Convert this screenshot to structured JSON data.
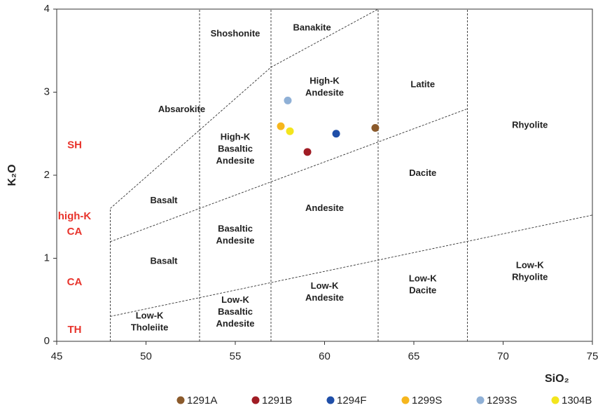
{
  "chart_data": {
    "type": "scatter",
    "x_label": "SiO₂",
    "y_label": "K₂O",
    "xlim": [
      45,
      75
    ],
    "ylim": [
      0,
      4
    ],
    "xticks": [
      45,
      50,
      55,
      60,
      65,
      70,
      75
    ],
    "yticks": [
      0,
      1,
      2,
      3,
      4
    ],
    "series": [
      {
        "name": "1291A",
        "color": "#8b5a2b",
        "x": [
          62.84
        ],
        "values": [
          2.57
        ]
      },
      {
        "name": "1291B",
        "color": "#a01c24",
        "x": [
          59.04
        ],
        "values": [
          2.28
        ]
      },
      {
        "name": "1294F",
        "color": "#1f4ea8",
        "x": [
          60.65
        ],
        "values": [
          2.5
        ]
      },
      {
        "name": "1299S",
        "color": "#f6b61d",
        "x": [
          57.55
        ],
        "values": [
          2.59
        ]
      },
      {
        "name": "1293S",
        "color": "#8fb0d6",
        "x": [
          57.94
        ],
        "values": [
          2.9
        ]
      },
      {
        "name": "1304B",
        "color": "#f3e51d",
        "x": [
          58.06
        ],
        "values": [
          2.53
        ]
      }
    ],
    "boundaries": [
      {
        "x": [
          48,
          57,
          63
        ],
        "y": [
          1.6,
          3.3,
          4
        ]
      },
      {
        "x": [
          48,
          68
        ],
        "y": [
          1.2,
          2.8
        ]
      },
      {
        "x": [
          48,
          75
        ],
        "y": [
          0.3,
          1.52
        ]
      },
      {
        "x": [
          48,
          48
        ],
        "y": [
          0,
          1.6
        ]
      },
      {
        "x": [
          53,
          53
        ],
        "y": [
          0,
          4
        ]
      },
      {
        "x": [
          57,
          57
        ],
        "y": [
          0,
          4
        ]
      },
      {
        "x": [
          63,
          63
        ],
        "y": [
          0,
          4
        ]
      },
      {
        "x": [
          68,
          68
        ],
        "y": [
          0,
          4
        ]
      }
    ],
    "regions": [
      [
        "Banakite"
      ],
      [
        "Shoshonite"
      ],
      [
        "High-K",
        "Andesite"
      ],
      [
        "Latite"
      ],
      [
        "Absarokite"
      ],
      [
        "Rhyolite"
      ],
      [
        "High-K",
        "Basaltic",
        "Andesite"
      ],
      [
        "Dacite"
      ],
      [
        "Basalt"
      ],
      [
        "Andesite"
      ],
      [
        "Basaltic",
        "Andesite"
      ],
      [
        "Basalt"
      ],
      [
        "Low-K",
        "Rhyolite"
      ],
      [
        "Low-K",
        "Andesite"
      ],
      [
        "Low-K",
        "Dacite"
      ],
      [
        "Low-K",
        "Basaltic",
        "Andesite"
      ],
      [
        "Low-K",
        "Tholeiite"
      ]
    ],
    "series_labels": [
      [
        "SH"
      ],
      [
        "high-K",
        "CA"
      ],
      [
        "CA"
      ],
      [
        "TH"
      ]
    ]
  }
}
